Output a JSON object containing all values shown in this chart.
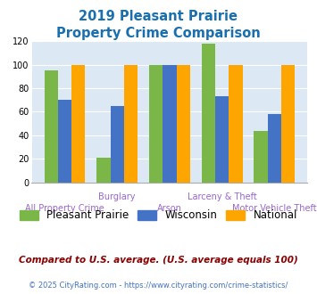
{
  "title_line1": "2019 Pleasant Prairie",
  "title_line2": "Property Crime Comparison",
  "title_color": "#1a6faf",
  "categories": [
    "All Property Crime",
    "Burglary",
    "Arson",
    "Larceny & Theft",
    "Motor Vehicle Theft"
  ],
  "pleasant_prairie": [
    95,
    21,
    100,
    118,
    44
  ],
  "wisconsin": [
    70,
    65,
    100,
    73,
    58
  ],
  "national": [
    100,
    100,
    100,
    100,
    100
  ],
  "color_pp": "#7ab648",
  "color_wi": "#4472c4",
  "color_nat": "#ffa500",
  "ylim": [
    0,
    120
  ],
  "yticks": [
    0,
    20,
    40,
    60,
    80,
    100,
    120
  ],
  "legend_labels": [
    "Pleasant Prairie",
    "Wisconsin",
    "National"
  ],
  "footnote1": "Compared to U.S. average. (U.S. average equals 100)",
  "footnote2": "© 2025 CityRating.com - https://www.cityrating.com/crime-statistics/",
  "footnote1_color": "#8b0000",
  "footnote2_color": "#4472c4",
  "plot_area_color": "#dce9f5",
  "x_label_color": "#9966cc",
  "x_label_fontsize": 7.0,
  "row_upper": [
    "Burglary",
    "Larceny & Theft"
  ],
  "row_lower": [
    "All Property Crime",
    "Arson",
    "Motor Vehicle Theft"
  ]
}
